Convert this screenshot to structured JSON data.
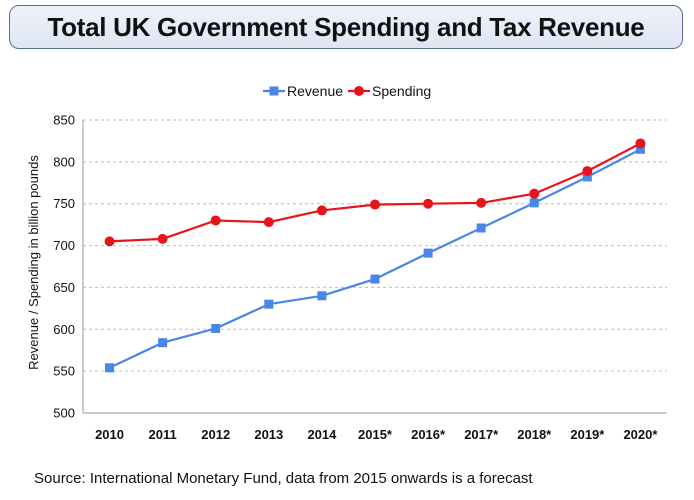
{
  "chart_data": {
    "type": "line",
    "title": "Total UK Government Spending and Tax Revenue",
    "ylabel": "Revenue / Spending in billion pounds",
    "xlabel": "",
    "categories": [
      "2010",
      "2011",
      "2012",
      "2013",
      "2014",
      "2015*",
      "2016*",
      "2017*",
      "2018*",
      "2019*",
      "2020*"
    ],
    "ylim": [
      500,
      850
    ],
    "yticks": [
      500,
      550,
      600,
      650,
      700,
      750,
      800,
      850
    ],
    "grid": true,
    "legend_position": "top-center",
    "series": [
      {
        "name": "Revenue",
        "color": "#4a86e8",
        "marker": "square",
        "values": [
          554,
          584,
          601,
          630,
          640,
          660,
          691,
          721,
          751,
          782,
          815
        ]
      },
      {
        "name": "Spending",
        "color": "#e8141c",
        "marker": "circle",
        "values": [
          705,
          708,
          730,
          728,
          742,
          749,
          750,
          751,
          762,
          789,
          822
        ]
      }
    ],
    "source": "Source: International Monetary Fund, data from 2015 onwards is a forecast"
  }
}
